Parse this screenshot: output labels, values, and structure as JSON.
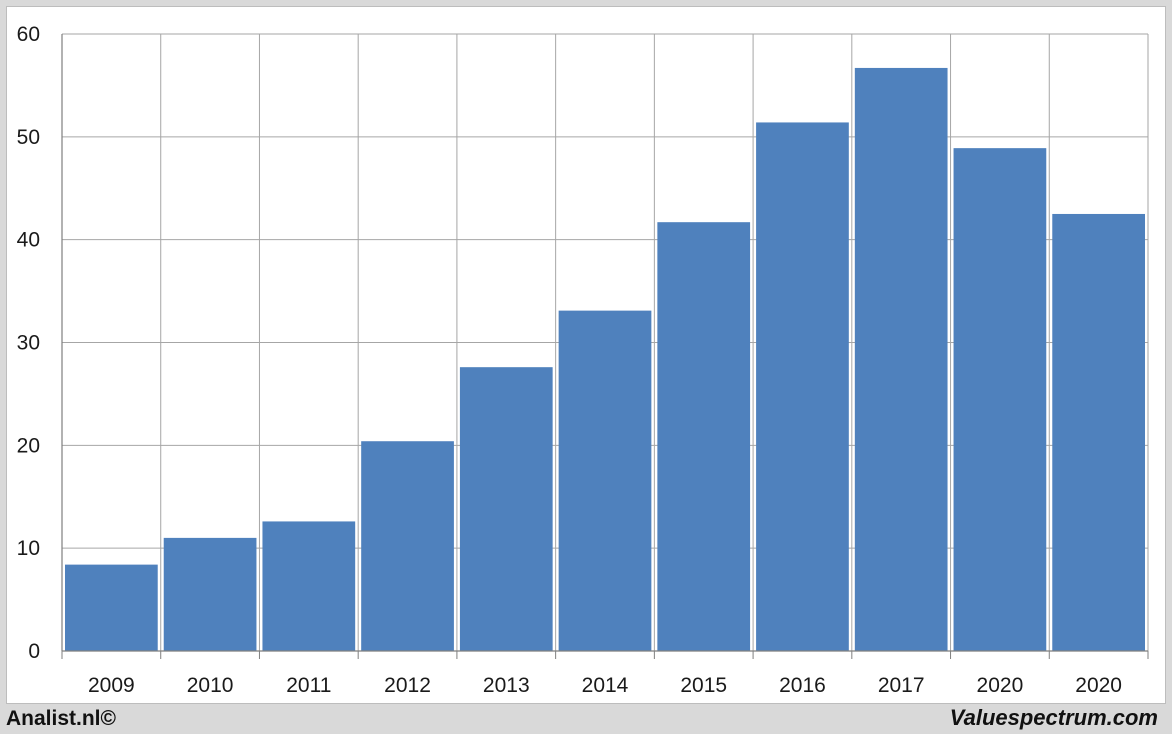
{
  "chart_data": {
    "type": "bar",
    "title": "",
    "xlabel": "",
    "ylabel": "",
    "categories": [
      "2009",
      "2010",
      "2011",
      "2012",
      "2013",
      "2014",
      "2015",
      "2016",
      "2017",
      "2020",
      "2020"
    ],
    "values": [
      8.4,
      11.0,
      12.6,
      20.4,
      27.6,
      33.1,
      41.7,
      51.4,
      56.7,
      48.9,
      42.5
    ],
    "ylim": [
      0,
      60
    ],
    "yticks": [
      "0",
      "10",
      "20",
      "30",
      "40",
      "50",
      "60"
    ],
    "grid": true,
    "legend": "none",
    "bar_color": "#4f81bd",
    "grid_color": "#a6a6a6"
  },
  "footer": {
    "left": "Analist.nl©",
    "right": "Valuespectrum.com"
  }
}
